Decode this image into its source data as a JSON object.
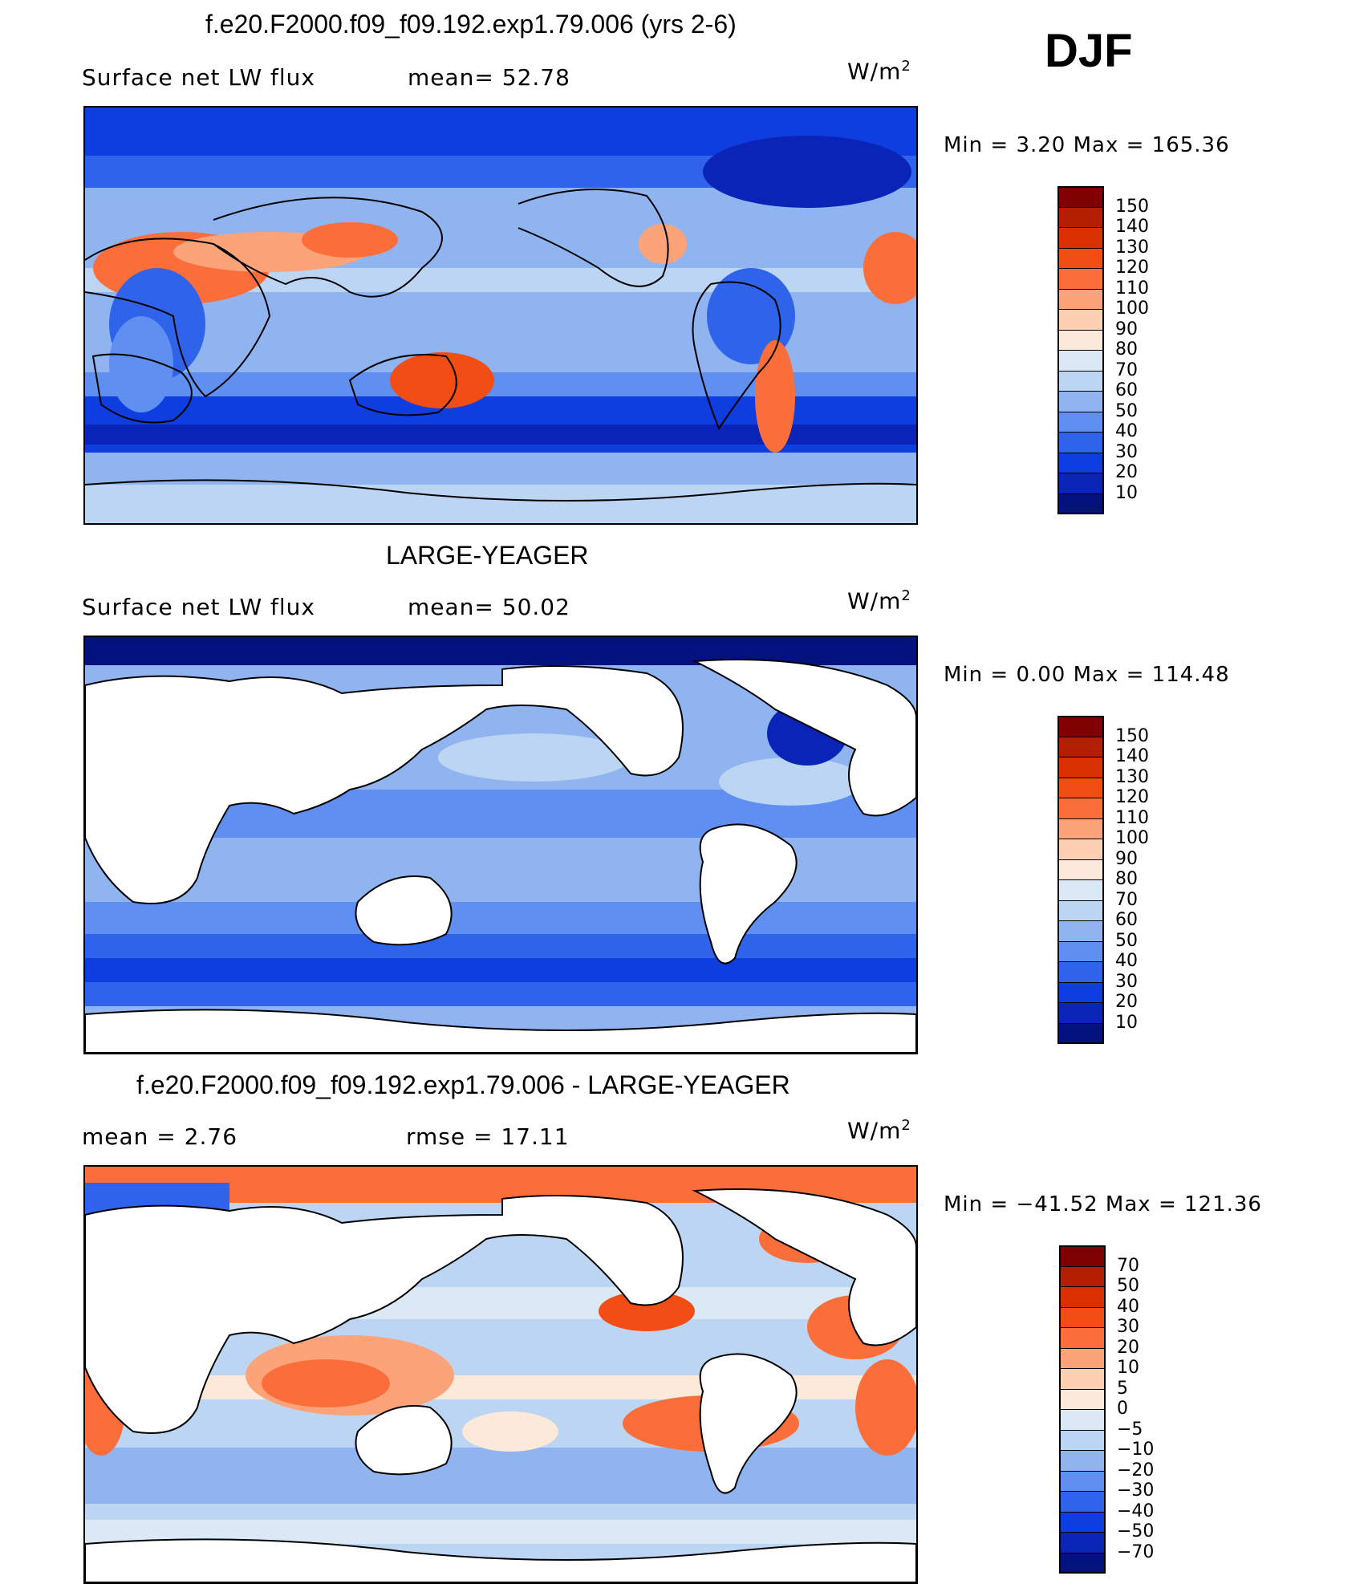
{
  "season": "DJF",
  "unit_base": "W/m",
  "unit_exp": "2",
  "panels": [
    {
      "title": "f.e20.F2000.f09_f09.192.exp1.79.006 (yrs 2-6)",
      "left_text": "Surface net LW flux",
      "mid_text": "mean=  52.78",
      "minmax": "Min  =     3.20  Max  =  165.36"
    },
    {
      "title": "LARGE-YEAGER",
      "left_text": "Surface net LW flux",
      "mid_text": "mean=  50.02",
      "minmax": "Min  =     0.00  Max  =  114.48"
    },
    {
      "title": "f.e20.F2000.f09_f09.192.exp1.79.006 - LARGE-YEAGER",
      "left_text": "mean  =     2.76",
      "mid_text": "rmse  =    17.11",
      "minmax": "Min  = −41.52  Max  =  121.36"
    }
  ],
  "colorbars": [
    {
      "labels": [
        "150",
        "140",
        "130",
        "120",
        "110",
        "100",
        "90",
        "80",
        "70",
        "60",
        "50",
        "40",
        "30",
        "20",
        "10"
      ],
      "colors": [
        "#7f0000",
        "#b31d00",
        "#d83000",
        "#f24d14",
        "#fb6e3a",
        "#fca37a",
        "#fdd0b4",
        "#fde9d9",
        "#dbe9f7",
        "#bcd5f3",
        "#8fb4f0",
        "#5f8ff0",
        "#2f63ea",
        "#0e3ee0",
        "#0a24b8",
        "#03127e"
      ]
    },
    {
      "labels": [
        "150",
        "140",
        "130",
        "120",
        "110",
        "100",
        "90",
        "80",
        "70",
        "60",
        "50",
        "40",
        "30",
        "20",
        "10"
      ],
      "colors": [
        "#7f0000",
        "#b31d00",
        "#d83000",
        "#f24d14",
        "#fb6e3a",
        "#fca37a",
        "#fdd0b4",
        "#fde9d9",
        "#dbe9f7",
        "#bcd5f3",
        "#8fb4f0",
        "#5f8ff0",
        "#2f63ea",
        "#0e3ee0",
        "#0a24b8",
        "#03127e"
      ]
    },
    {
      "labels": [
        "70",
        "50",
        "40",
        "30",
        "20",
        "10",
        "5",
        "0",
        "−5",
        "−10",
        "−20",
        "−30",
        "−40",
        "−50",
        "−70"
      ],
      "colors": [
        "#7f0000",
        "#b31d00",
        "#d83000",
        "#f24d14",
        "#fb6e3a",
        "#fca37a",
        "#fdd0b4",
        "#fde9d9",
        "#dbe9f7",
        "#bcd5f3",
        "#8fb4f0",
        "#5f8ff0",
        "#2f63ea",
        "#0e3ee0",
        "#0a24b8",
        "#03127e"
      ]
    }
  ],
  "chart_data": [
    {
      "type": "heatmap",
      "title": "f.e20.F2000.f09_f09.192.exp1.79.006 (yrs 2-6)",
      "variable": "Surface net LW flux",
      "units": "W/m2",
      "mean": 52.78,
      "min": 3.2,
      "max": 165.36,
      "contour_levels": [
        10,
        20,
        30,
        40,
        50,
        60,
        70,
        80,
        90,
        100,
        110,
        120,
        130,
        140,
        150
      ]
    },
    {
      "type": "heatmap",
      "title": "LARGE-YEAGER",
      "variable": "Surface net LW flux",
      "units": "W/m2",
      "mean": 50.02,
      "min": 0.0,
      "max": 114.48,
      "contour_levels": [
        10,
        20,
        30,
        40,
        50,
        60,
        70,
        80,
        90,
        100,
        110,
        120,
        130,
        140,
        150
      ]
    },
    {
      "type": "heatmap",
      "title": "f.e20.F2000.f09_f09.192.exp1.79.006 - LARGE-YEAGER",
      "units": "W/m2",
      "mean": 2.76,
      "rmse": 17.11,
      "min": -41.52,
      "max": 121.36,
      "contour_levels": [
        -70,
        -50,
        -40,
        -30,
        -20,
        -10,
        -5,
        0,
        5,
        10,
        20,
        30,
        40,
        50,
        70
      ]
    }
  ]
}
